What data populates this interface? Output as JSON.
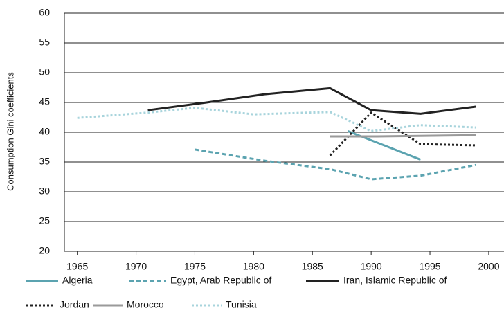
{
  "chart_data": {
    "type": "line",
    "y_label": "Consumption Gini coefficients",
    "xlim": [
      1963.9,
      2001.3
    ],
    "xticks": [
      1965,
      1970,
      1975,
      1980,
      1985,
      1990,
      1995,
      2000
    ],
    "ylim": [
      20,
      60
    ],
    "yticks": [
      20,
      25,
      30,
      35,
      40,
      45,
      50,
      55,
      60
    ],
    "grid": true,
    "legend": "bottom",
    "series": [
      {
        "name": "Algeria",
        "color": "#5ba3b0",
        "style": "solid",
        "x": [
          1988,
          1994.2
        ],
        "values": [
          40.2,
          35.4
        ]
      },
      {
        "name": "Egypt, Arab Republic of",
        "color": "#5ba3b0",
        "style": "dashed",
        "x": [
          1975,
          1981,
          1986.5,
          1990,
          1994.2,
          1998.9
        ],
        "values": [
          37.1,
          35.2,
          33.8,
          32.1,
          32.7,
          34.5
        ]
      },
      {
        "name": "Iran, Islamic Republic of",
        "color": "#222222",
        "style": "solid",
        "x": [
          1971,
          1976,
          1981,
          1986.5,
          1990,
          1994.2,
          1998.9
        ],
        "values": [
          43.7,
          45,
          46.4,
          47.4,
          43.7,
          43.1,
          44.3
        ]
      },
      {
        "name": "Jordan",
        "color": "#222222",
        "style": "dotted",
        "x": [
          1986.5,
          1990,
          1994.2,
          1998.9
        ],
        "values": [
          36.1,
          43.3,
          38.0,
          37.8
        ]
      },
      {
        "name": "Morocco",
        "color": "#9a9a9a",
        "style": "solid",
        "x": [
          1986.5,
          1990.5,
          1998.9
        ],
        "values": [
          39.3,
          39.3,
          39.5
        ]
      },
      {
        "name": "Tunisia",
        "color": "#a8d4dc",
        "style": "dotted",
        "x": [
          1965,
          1971,
          1975,
          1980,
          1986.5,
          1990,
          1994.2,
          1998.9
        ],
        "values": [
          42.4,
          43.3,
          44.1,
          43.0,
          43.4,
          40.2,
          41.2,
          40.8
        ]
      }
    ]
  }
}
